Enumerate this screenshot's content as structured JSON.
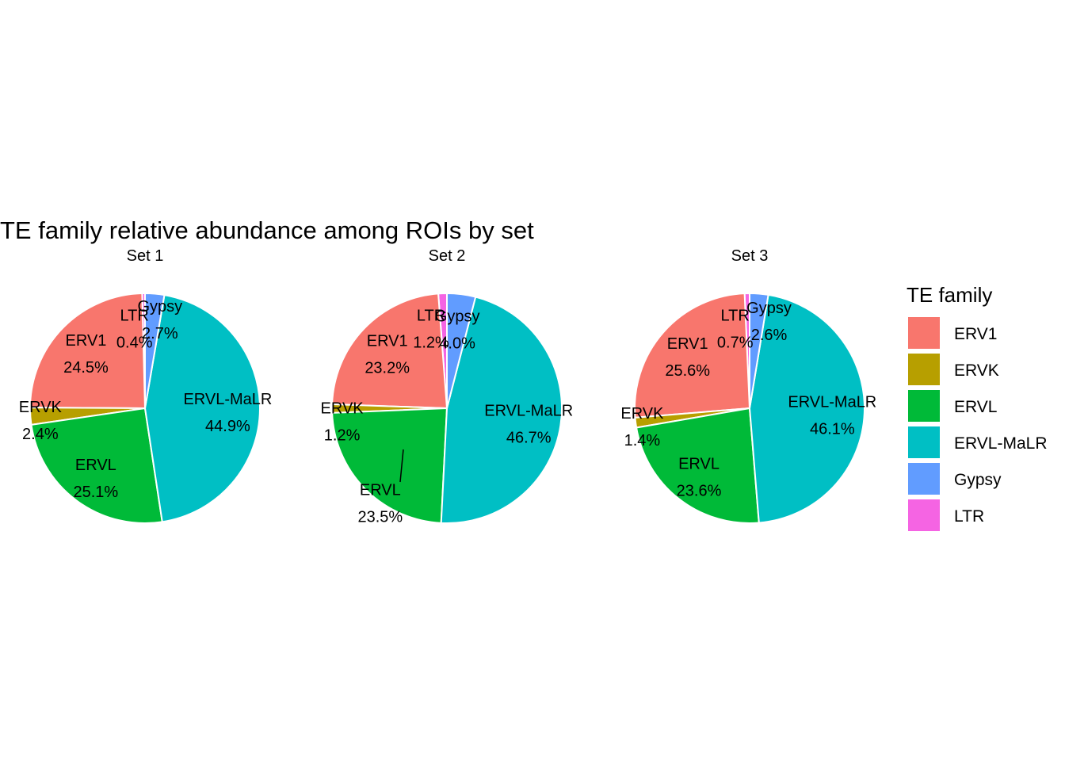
{
  "chart_data": {
    "type": "pie",
    "title": "TE family relative abundance among ROIs by set",
    "legend": {
      "title": "TE family",
      "placement": "right",
      "entries": [
        {
          "name": "ERV1",
          "color": "#F8766D"
        },
        {
          "name": "ERVK",
          "color": "#B79F00"
        },
        {
          "name": "ERVL",
          "color": "#00BA38"
        },
        {
          "name": "ERVL-MaLR",
          "color": "#00BFC4"
        },
        {
          "name": "Gypsy",
          "color": "#619CFF"
        },
        {
          "name": "LTR",
          "color": "#F564E3"
        }
      ]
    },
    "categories": [
      "ERV1",
      "ERVK",
      "ERVL",
      "ERVL-MaLR",
      "Gypsy",
      "LTR"
    ],
    "panels": [
      {
        "title": "Set  1",
        "values": [
          24.5,
          2.4,
          25.1,
          44.9,
          2.7,
          0.4
        ],
        "labels": [
          "24.5%",
          "2.4%",
          "25.1%",
          "44.9%",
          "2.7%",
          "0.4%"
        ]
      },
      {
        "title": "Set  2",
        "values": [
          23.2,
          1.2,
          23.5,
          46.7,
          4.0,
          1.2
        ],
        "labels": [
          "23.2%",
          "1.2%",
          "23.5%",
          "46.7%",
          "4.0%",
          "1.2%"
        ]
      },
      {
        "title": "Set  3",
        "values": [
          25.6,
          1.4,
          23.6,
          46.1,
          2.6,
          0.7
        ],
        "labels": [
          "25.6%",
          "1.4%",
          "23.6%",
          "46.1%",
          "2.6%",
          "0.7%"
        ]
      }
    ]
  }
}
